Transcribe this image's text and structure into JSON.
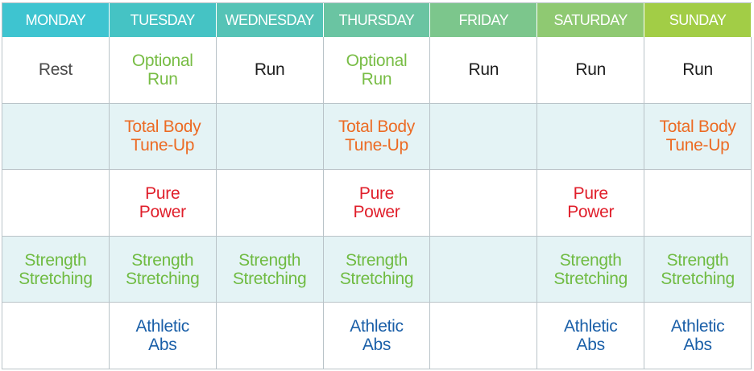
{
  "colors": {
    "header_start": "#3ec4d0",
    "header_end": "#9ccc3a",
    "shaded_row": "#e4f3f5",
    "rest": "#4a4a4a",
    "optional_run": "#78bd45",
    "run": "#1e1e1e",
    "total_body": "#ec6b24",
    "pure_power": "#e01f2b",
    "strength": "#6fbb42",
    "athletic_abs": "#1a5fa8"
  },
  "days": [
    "MONDAY",
    "TUESDAY",
    "WEDNESDAY",
    "THURSDAY",
    "FRIDAY",
    "SATURDAY",
    "SUNDAY"
  ],
  "header_colors": [
    "#3ec4d0",
    "#45c3c4",
    "#55c3b6",
    "#6ac4a2",
    "#7cc68c",
    "#8fc972",
    "#a2cd46"
  ],
  "rows": [
    {
      "shaded": false,
      "cells": [
        {
          "text": "Rest",
          "kind": "rest"
        },
        {
          "text": "Optional\nRun",
          "kind": "optional"
        },
        {
          "text": "Run",
          "kind": "run"
        },
        {
          "text": "Optional\nRun",
          "kind": "optional"
        },
        {
          "text": "Run",
          "kind": "run"
        },
        {
          "text": "Run",
          "kind": "run"
        },
        {
          "text": "Run",
          "kind": "run"
        }
      ]
    },
    {
      "shaded": true,
      "cells": [
        {
          "text": "",
          "kind": ""
        },
        {
          "text": "Total Body\nTune-Up",
          "kind": "tune"
        },
        {
          "text": "",
          "kind": ""
        },
        {
          "text": "Total Body\nTune-Up",
          "kind": "tune"
        },
        {
          "text": "",
          "kind": ""
        },
        {
          "text": "",
          "kind": ""
        },
        {
          "text": "Total Body\nTune-Up",
          "kind": "tune"
        }
      ]
    },
    {
      "shaded": false,
      "cells": [
        {
          "text": "",
          "kind": ""
        },
        {
          "text": "Pure\nPower",
          "kind": "power"
        },
        {
          "text": "",
          "kind": ""
        },
        {
          "text": "Pure\nPower",
          "kind": "power"
        },
        {
          "text": "",
          "kind": ""
        },
        {
          "text": "Pure\nPower",
          "kind": "power"
        },
        {
          "text": "",
          "kind": ""
        }
      ]
    },
    {
      "shaded": true,
      "cells": [
        {
          "text": "Strength\nStretching",
          "kind": "strength"
        },
        {
          "text": "Strength\nStretching",
          "kind": "strength"
        },
        {
          "text": "Strength\nStretching",
          "kind": "strength"
        },
        {
          "text": "Strength\nStretching",
          "kind": "strength"
        },
        {
          "text": "",
          "kind": ""
        },
        {
          "text": "Strength\nStretching",
          "kind": "strength"
        },
        {
          "text": "Strength\nStretching",
          "kind": "strength"
        }
      ]
    },
    {
      "shaded": false,
      "cells": [
        {
          "text": "",
          "kind": ""
        },
        {
          "text": "Athletic\nAbs",
          "kind": "abs"
        },
        {
          "text": "",
          "kind": ""
        },
        {
          "text": "Athletic\nAbs",
          "kind": "abs"
        },
        {
          "text": "",
          "kind": ""
        },
        {
          "text": "Athletic\nAbs",
          "kind": "abs"
        },
        {
          "text": "Athletic\nAbs",
          "kind": "abs"
        }
      ]
    }
  ]
}
